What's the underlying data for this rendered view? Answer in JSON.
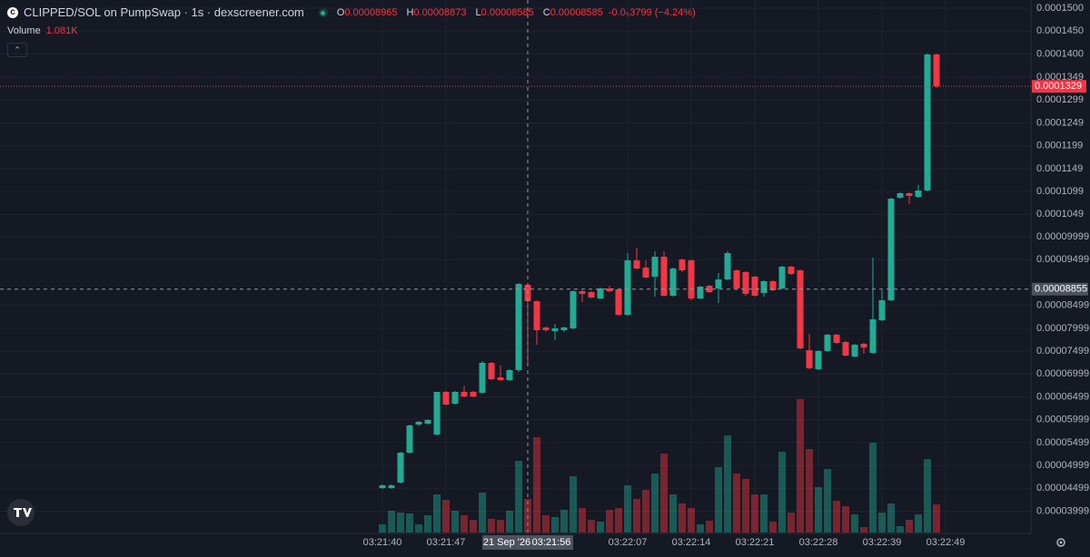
{
  "header": {
    "title": "CLIPPED/SOL on PumpSwap · 1s · dexscreener.com",
    "ohlc": [
      [
        "O",
        "0.00008965"
      ],
      [
        "H",
        "0.00008873"
      ],
      [
        "L",
        "0.00008585"
      ],
      [
        "C",
        "0.00008585"
      ]
    ],
    "change": "-0.0₅3799 (−4.24%)",
    "volume": "Volume",
    "volume_value": "1.081K"
  },
  "chart_data": {
    "type": "candlestick",
    "open": [
      4.505e-05,
      4.505e-05,
      4.624e-05,
      5.278e-05,
      5.893e-05,
      5.913e-05,
      5.675e-05,
      6.608e-05,
      6.35e-05,
      6.608e-05,
      6.608e-05,
      6.588e-05,
      7.243e-05,
      6.925e-05,
      6.866e-05,
      7.084e-05,
      8.949e-05,
      8.592e-05,
      8.016e-05,
      7.937e-05,
      7.957e-05,
      7.997e-05,
      8.81e-05,
      8.79e-05,
      8.651e-05,
      8.87e-05,
      8.85e-05,
      8.294e-05,
      9.485e-05,
      9.326e-05,
      9.128e-05,
      9.564e-05,
      8.711e-05,
      9.504e-05,
      9.485e-05,
      8.651e-05,
      8.929e-05,
      8.87e-05,
      9.068e-05,
      9.266e-05,
      9.227e-05,
      9.128e-05,
      8.77e-05,
      9.028e-05,
      8.87e-05,
      9.346e-05,
      9.266e-05,
      7.52e-05,
      7.104e-05,
      7.501e-05,
      7.858e-05,
      7.699e-05,
      7.381e-05,
      7.659e-05,
      7.461e-05,
      8.175e-05,
      8.612e-05,
      0.00010854,
      0.00010953,
      0.00010873,
      0.00011012,
      0.00013988
    ],
    "high": [
      4.584e-05,
      4.584e-05,
      5.298e-05,
      5.893e-05,
      5.973e-05,
      6.013e-05,
      6.608e-05,
      6.628e-05,
      6.628e-05,
      6.747e-05,
      6.628e-05,
      7.282e-05,
      7.262e-05,
      7.183e-05,
      7.104e-05,
      8.989e-05,
      8.989e-05,
      8.612e-05,
      8.036e-05,
      8.096e-05,
      8.036e-05,
      8.83e-05,
      8.83e-05,
      8.81e-05,
      8.889e-05,
      8.929e-05,
      8.87e-05,
      9.643e-05,
      9.762e-05,
      9.485e-05,
      9.683e-05,
      9.683e-05,
      9.326e-05,
      9.524e-05,
      9.504e-05,
      8.929e-05,
      8.949e-05,
      9.207e-05,
      9.683e-05,
      9.286e-05,
      9.247e-05,
      9.147e-05,
      9.048e-05,
      9.048e-05,
      9.366e-05,
      9.366e-05,
      9.286e-05,
      7.878e-05,
      7.52e-05,
      7.878e-05,
      7.878e-05,
      7.719e-05,
      7.659e-05,
      7.679e-05,
      9.544e-05,
      8.83e-05,
      0.00010854,
      0.00010973,
      0.00010973,
      0.00011131,
      0.00014008,
      0.00014008
    ],
    "low": [
      4.485e-05,
      4.485e-05,
      4.604e-05,
      5.259e-05,
      5.854e-05,
      5.893e-05,
      5.655e-05,
      6.31e-05,
      6.33e-05,
      6.489e-05,
      6.489e-05,
      6.568e-05,
      6.866e-05,
      6.846e-05,
      6.846e-05,
      7.044e-05,
      7.243e-05,
      7.639e-05,
      7.917e-05,
      7.739e-05,
      7.917e-05,
      7.977e-05,
      8.572e-05,
      8.651e-05,
      8.632e-05,
      8.79e-05,
      8.274e-05,
      8.274e-05,
      9.286e-05,
      9.088e-05,
      8.691e-05,
      8.691e-05,
      8.691e-05,
      9.227e-05,
      8.612e-05,
      8.632e-05,
      8.77e-05,
      8.552e-05,
      9.048e-05,
      8.83e-05,
      8.711e-05,
      8.691e-05,
      8.691e-05,
      8.81e-05,
      8.85e-05,
      9.167e-05,
      7.54e-05,
      7.104e-05,
      7.084e-05,
      7.481e-05,
      7.659e-05,
      7.381e-05,
      7.362e-05,
      7.441e-05,
      7.441e-05,
      8.155e-05,
      8.592e-05,
      0.00010834,
      0.00010715,
      0.00010854,
      0.00010992,
      0.00013254
    ],
    "close": [
      4.564e-05,
      4.564e-05,
      5.278e-05,
      5.874e-05,
      5.953e-05,
      5.993e-05,
      6.608e-05,
      6.33e-05,
      6.608e-05,
      6.508e-05,
      6.508e-05,
      7.243e-05,
      6.885e-05,
      6.866e-05,
      7.084e-05,
      8.969e-05,
      8.592e-05,
      7.957e-05,
      7.957e-05,
      7.997e-05,
      8.016e-05,
      8.81e-05,
      8.751e-05,
      8.671e-05,
      8.87e-05,
      8.81e-05,
      8.294e-05,
      9.485e-05,
      9.306e-05,
      9.108e-05,
      9.564e-05,
      8.711e-05,
      9.306e-05,
      9.266e-05,
      8.651e-05,
      8.909e-05,
      8.79e-05,
      9.068e-05,
      9.643e-05,
      8.87e-05,
      8.751e-05,
      8.711e-05,
      9.028e-05,
      8.83e-05,
      9.346e-05,
      9.187e-05,
      7.56e-05,
      7.124e-05,
      7.501e-05,
      7.858e-05,
      7.679e-05,
      7.401e-05,
      7.639e-05,
      7.58e-05,
      8.195e-05,
      8.612e-05,
      0.00010834,
      0.00010953,
      0.00010893,
      0.00011012,
      0.00013988,
      0.0001329
    ],
    "volume": [
      315,
      840,
      770,
      735,
      315,
      665,
      1470,
      1260,
      840,
      665,
      490,
      1540,
      525,
      490,
      840,
      2765,
      1295,
      3675,
      665,
      595,
      875,
      2170,
      945,
      490,
      420,
      875,
      945,
      1820,
      1295,
      1645,
      2275,
      3045,
      1470,
      1120,
      945,
      315,
      455,
      2520,
      3745,
      2275,
      2065,
      1470,
      1470,
      420,
      3115,
      770,
      5145,
      3220,
      1750,
      2450,
      1225,
      1015,
      700,
      210,
      3465,
      770,
      1120,
      245,
      490,
      700,
      2835,
      1081
    ],
    "up_color": "#22ab94",
    "down_color": "#f23645",
    "xlim": [
      -42.1,
      71.4
    ],
    "xticks": [
      {
        "value": 0,
        "label": "03:21:40"
      },
      {
        "value": 7,
        "label": "03:21:47"
      },
      {
        "value": 27,
        "label": "03:22:07"
      },
      {
        "value": 34,
        "label": "03:22:14"
      },
      {
        "value": 41,
        "label": "03:22:21"
      },
      {
        "value": 48,
        "label": "03:22:28"
      },
      {
        "value": 55,
        "label": "03:22:39"
      },
      {
        "value": 62,
        "label": "03:22:49"
      }
    ],
    "ylim": [
      3.532e-05,
      0.00015179
    ],
    "yticks": [
      {
        "value": 0.00015,
        "label": "0.0001500"
      },
      {
        "value": 0.000145,
        "label": "0.0001450"
      },
      {
        "value": 0.00014,
        "label": "0.0001400"
      },
      0.0001349,
      0.0001299,
      0.0001249,
      0.0001199,
      0.0001149,
      0.0001099,
      0.0001049,
      9.999e-05,
      9.499e-05,
      8.499e-05,
      7.999e-05,
      7.499e-05,
      6.999e-05,
      6.499e-05,
      5.999e-05,
      5.499e-05,
      4.999e-05,
      4.499e-05,
      3.999e-05
    ],
    "y2lim": [
      0,
      20545
    ],
    "grid": true,
    "last_price": 0.0001329,
    "crosshair": {
      "index": 16,
      "price": 8.855e-05,
      "date_label": "21 Sep '26",
      "time_label": "03:21:56"
    }
  }
}
